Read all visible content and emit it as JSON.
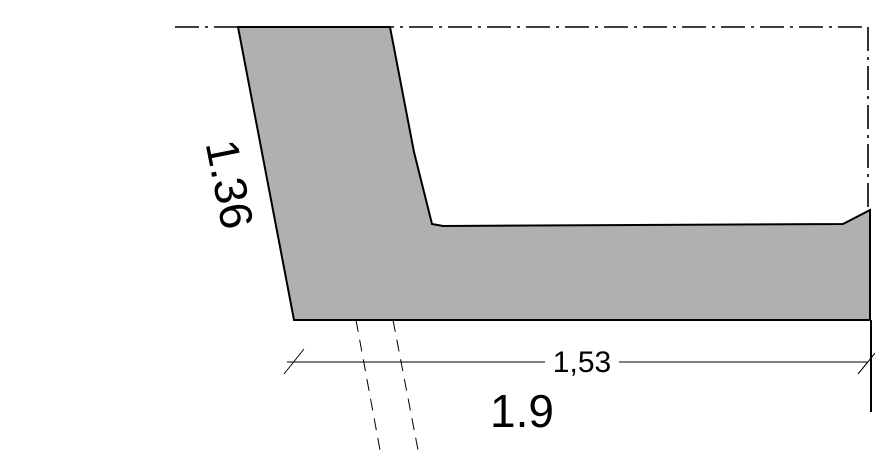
{
  "drawing": {
    "dimension_slanted_wall": "1.36",
    "dimension_bottom_length": "1,53",
    "dimension_total_width": "1.9",
    "section_fill_color": "#b0b0b0",
    "line_color": "#000000"
  }
}
